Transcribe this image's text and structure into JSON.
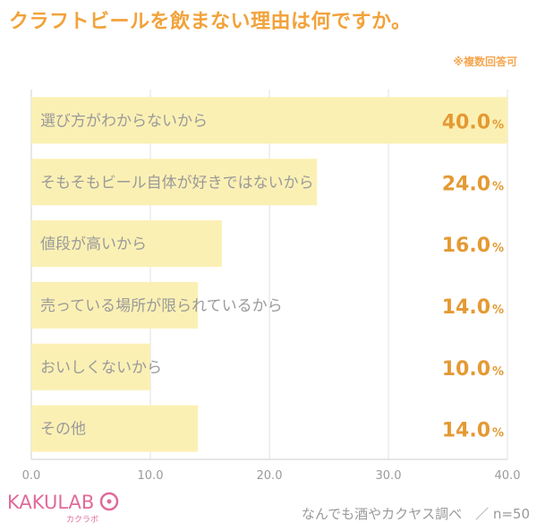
{
  "title": "クラフトビールを飲まない理由は何ですか。",
  "note": "※複数回答可",
  "chart_data": {
    "type": "bar",
    "orientation": "horizontal",
    "categories": [
      "選び方がわからないから",
      "そもそもビール自体が好きではないから",
      "値段が高いから",
      "売っている場所が限られているから",
      "おいしくないから",
      "その他"
    ],
    "values": [
      40.0,
      24.0,
      16.0,
      14.0,
      10.0,
      14.0
    ],
    "value_labels": [
      "40.0",
      "24.0",
      "16.0",
      "14.0",
      "10.0",
      "14.0"
    ],
    "value_unit": "%",
    "xlim": [
      0,
      40
    ],
    "xticks": [
      "0.0",
      "10.0",
      "20.0",
      "30.0",
      "40.0"
    ],
    "grid": true,
    "bar_color": "#fbf0b4",
    "value_color": "#e49a33"
  },
  "logo": {
    "text": "KAKULAB",
    "sub": "カクラボ",
    "color": "#e06a9a"
  },
  "source": "なんでも酒やカクヤス調べ　／ n=50",
  "colors": {
    "title": "#f2a23a",
    "note": "#f5a64f",
    "label": "#9a9a9a"
  }
}
